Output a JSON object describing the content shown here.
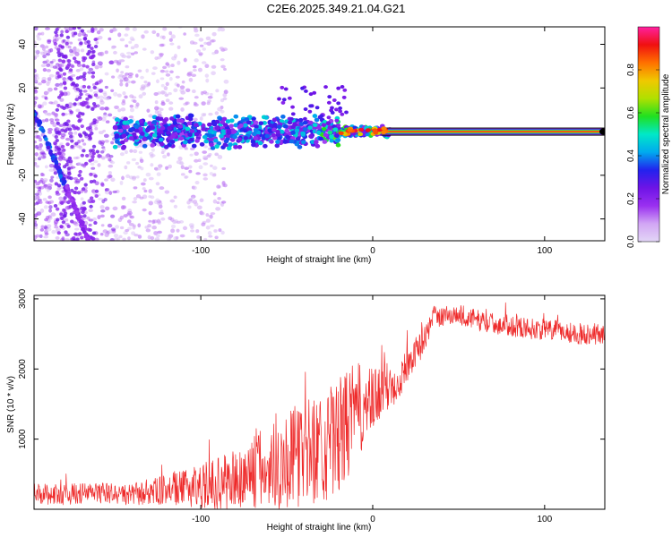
{
  "title": "C2E6.2025.349.21.04.G21",
  "colors": {
    "snr_line": "#ee2a2a",
    "axis": "#000000",
    "background": "#ffffff"
  },
  "chart_data": [
    {
      "type": "heatmap",
      "name": "spectrogram",
      "xlabel": "Height of straight line (km)",
      "ylabel": "Frequency (Hz)",
      "xlim": [
        -197,
        135
      ],
      "ylim": [
        -50,
        48
      ],
      "xticks": [
        -100,
        0,
        100
      ],
      "xtick_labels": [
        "-100",
        "0",
        "100"
      ],
      "yticks": [
        -40,
        -20,
        0,
        20,
        40
      ],
      "ytick_labels": [
        "-40",
        "-20",
        "0",
        "20",
        "40"
      ],
      "colorbar": {
        "label": "Normalized spectral amplitude",
        "range": [
          0,
          1
        ],
        "ticks": [
          0,
          0.2,
          0.4,
          0.6,
          0.8
        ],
        "tick_labels": [
          "0.0",
          "0.2",
          "0.4",
          "0.6",
          "0.8"
        ],
        "colormap": [
          "#e2d6f6",
          "#d2a6f4",
          "#9a30f0",
          "#6e14e6",
          "#2222ee",
          "#00aaee",
          "#00e8c8",
          "#20e020",
          "#b0e000",
          "#f0c800",
          "#ff7000",
          "#f01010",
          "#ff20a0"
        ]
      },
      "features": [
        {
          "label": "carrier line",
          "x_range": [
            5,
            135
          ],
          "freq_hz": 0,
          "amplitude": 1.0
        },
        {
          "label": "noisy carrier band",
          "x_range": [
            -150,
            10
          ],
          "freq_hz": 0,
          "amplitude": 0.3
        },
        {
          "label": "descending diagonal trace",
          "x_start": -197,
          "freq_start_hz": 9,
          "x_end": -165,
          "freq_end_hz": -50,
          "amplitude": 0.35
        },
        {
          "label": "scattered noise",
          "x_range": [
            -197,
            -85
          ],
          "freq_range_hz": [
            -50,
            48
          ],
          "amplitude": 0.1
        }
      ]
    },
    {
      "type": "line",
      "name": "snr",
      "xlabel": "Height of straight line (km)",
      "ylabel": "SNR (10 * v/v)",
      "xlim": [
        -197,
        135
      ],
      "ylim": [
        0,
        3050
      ],
      "xticks": [
        -100,
        0,
        100
      ],
      "xtick_labels": [
        "-100",
        "0",
        "100"
      ],
      "yticks": [
        1000,
        2000,
        3000
      ],
      "ytick_labels": [
        "1000",
        "2000",
        "3000"
      ],
      "series": [
        {
          "name": "SNR",
          "color": "#ee2a2a",
          "x": [
            -197,
            -180,
            -160,
            -140,
            -125,
            -110,
            -95,
            -80,
            -70,
            -60,
            -50,
            -40,
            -30,
            -20,
            -15,
            -10,
            -5,
            0,
            5,
            10,
            15,
            20,
            25,
            30,
            35,
            40,
            50,
            60,
            70,
            80,
            90,
            100,
            110,
            120,
            135
          ],
          "y": [
            220,
            210,
            240,
            200,
            260,
            300,
            350,
            400,
            520,
            600,
            700,
            800,
            900,
            1000,
            1200,
            1400,
            1450,
            1500,
            1700,
            1750,
            1850,
            2050,
            2250,
            2400,
            2750,
            2750,
            2780,
            2700,
            2650,
            2620,
            2580,
            2560,
            2540,
            2500,
            2500
          ],
          "noise_band": [
            150,
            150,
            150,
            150,
            200,
            250,
            350,
            450,
            550,
            650,
            700,
            750,
            800,
            850,
            800,
            700,
            600,
            500,
            400,
            350,
            300,
            250,
            200,
            200,
            150,
            150,
            150,
            150,
            150,
            150,
            150,
            150,
            150,
            150,
            150
          ]
        }
      ]
    }
  ]
}
